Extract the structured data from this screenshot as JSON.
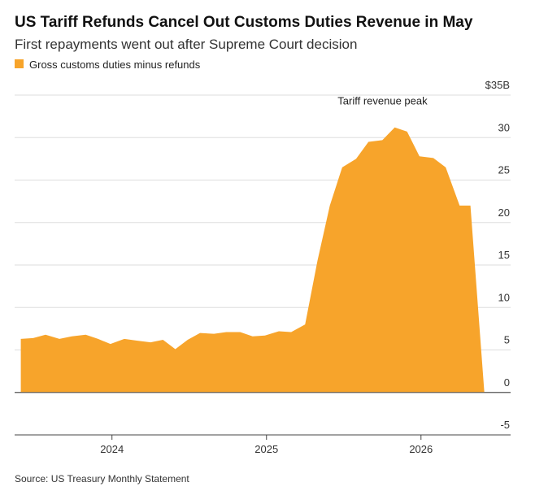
{
  "chart_data": {
    "type": "area",
    "title": "US Tariff Refunds Cancel Out Customs Duties Revenue in May",
    "subtitle": "First repayments went out after Supreme Court decision",
    "source": "Source: US Treasury Monthly Statement",
    "annotation": "Tariff revenue peak",
    "x": [
      2023.41,
      2023.49,
      2023.57,
      2023.66,
      2023.74,
      2023.83,
      2023.91,
      2023.99,
      2024.08,
      2024.16,
      2024.25,
      2024.33,
      2024.41,
      2024.49,
      2024.57,
      2024.66,
      2024.74,
      2024.83,
      2024.91,
      2024.99,
      2025.08,
      2025.16,
      2025.25,
      2025.33,
      2025.41,
      2025.49,
      2025.58,
      2025.66,
      2025.75,
      2025.83,
      2025.91,
      2025.99,
      2026.08,
      2026.16,
      2026.25,
      2026.32,
      2026.41
    ],
    "series": [
      {
        "name": "Gross customs duties minus refunds",
        "color": "#f7a42b",
        "values": [
          6.3,
          6.4,
          6.8,
          6.3,
          6.6,
          6.8,
          6.3,
          5.7,
          6.3,
          6.1,
          5.9,
          6.2,
          5.1,
          6.2,
          7.0,
          6.9,
          7.1,
          7.1,
          6.6,
          6.7,
          7.2,
          7.1,
          8.0,
          15.5,
          22,
          26.5,
          27.5,
          29.5,
          29.7,
          31.2,
          30.7,
          27.8,
          27.6,
          26.5,
          22,
          22,
          0
        ]
      }
    ],
    "xlim": [
      2023.37,
      2026.58
    ],
    "xticks": [
      2024,
      2025,
      2026
    ],
    "ylim": [
      -5,
      35
    ],
    "yticks": [
      -5,
      0,
      5,
      10,
      15,
      20,
      25,
      30,
      {
        "value": 35,
        "label": "$35B"
      }
    ],
    "grid": true,
    "legend": "top-left"
  }
}
